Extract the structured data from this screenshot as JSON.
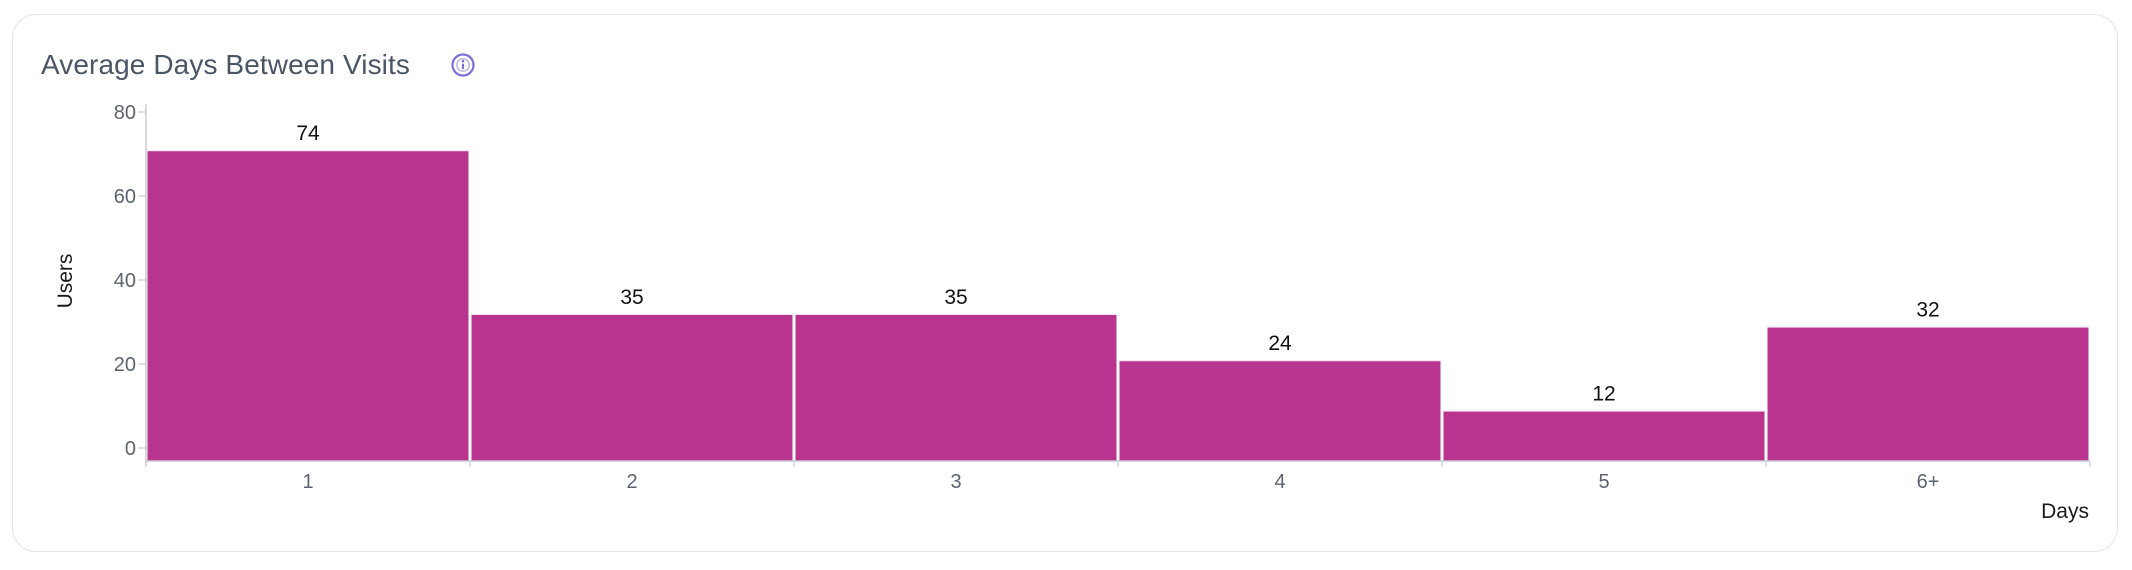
{
  "card": {
    "title": "Average Days Between Visits",
    "info_icon": "info-circle-icon"
  },
  "colors": {
    "bar": "#b8348f",
    "bar_border": "#ffffff",
    "axis": "#c9ccd1",
    "icon": "#7b6fd8"
  },
  "chart_data": {
    "type": "bar",
    "categories": [
      "1",
      "2",
      "3",
      "4",
      "5",
      "6+"
    ],
    "values": [
      74,
      35,
      35,
      24,
      12,
      32
    ],
    "title": "Average Days Between Visits",
    "xlabel": "Days",
    "ylabel": "Users",
    "ylim": [
      0,
      85
    ],
    "yticks": [
      0,
      20,
      40,
      60,
      80
    ],
    "grid": false,
    "data_labels": true
  }
}
